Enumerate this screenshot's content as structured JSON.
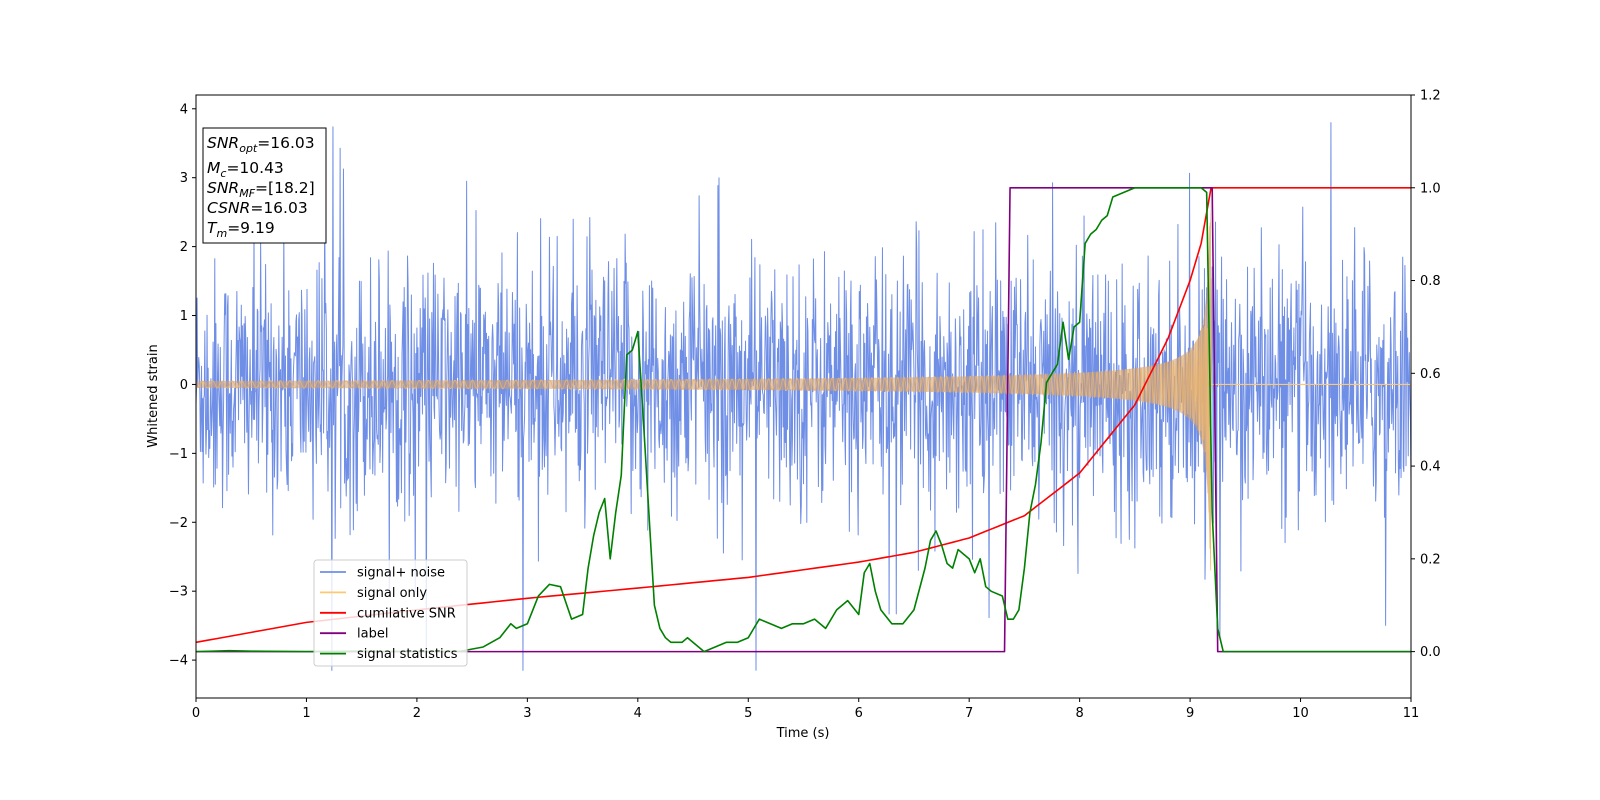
{
  "chart_data": {
    "type": "line",
    "xlabel": "Time (s)",
    "ylabel": "Whitened strain",
    "xlim": [
      0,
      11
    ],
    "ylim": [
      -4.55,
      4.2
    ],
    "y2lim": [
      -0.1,
      1.2
    ],
    "x_ticks": [
      "0",
      "1",
      "2",
      "3",
      "4",
      "5",
      "6",
      "7",
      "8",
      "9",
      "10",
      "11"
    ],
    "y_ticks": [
      "4",
      "3",
      "2",
      "1",
      "0",
      "−1",
      "−2",
      "−3",
      "−4"
    ],
    "y2_ticks": [
      "1.2",
      "1.0",
      "0.8",
      "0.6",
      "0.4",
      "0.2",
      "0.0"
    ],
    "grid": false,
    "legend_placement": "lower-left",
    "legend": [
      {
        "label": "signal+ noise",
        "color": "#6f8ee6"
      },
      {
        "label": "signal only",
        "color": "#ffc870"
      },
      {
        "label": "cumilative SNR",
        "color": "#ff0000"
      },
      {
        "label": "label",
        "color": "#800080"
      },
      {
        "label": "signal statistics",
        "color": "#008000"
      }
    ],
    "info_box": {
      "snr_opt": {
        "main": "SNR",
        "sub": "opt",
        "value": "=16.03"
      },
      "mc": {
        "main": "M",
        "sub": "c",
        "value": "=10.43"
      },
      "snr_mf": {
        "main": "SNR",
        "sub": "MF",
        "value": "=[18.2]"
      },
      "csnr": {
        "main": "CSNR",
        "value": "=16.03"
      },
      "tm": {
        "main": "T",
        "sub": "m",
        "value": "=9.19"
      }
    },
    "series": [
      {
        "name": "signal+ noise",
        "axis": "left",
        "color": "#6f8ee6",
        "description_stats": {
          "noise_std": 0.9,
          "spike_max": 3.8,
          "spike_min": -4.15,
          "x_range": [
            0,
            11
          ]
        }
      },
      {
        "name": "signal only",
        "axis": "left",
        "color": "#ffc870",
        "chirp": {
          "t_merge": 9.19,
          "amp_start": 0.05,
          "amp_peak": 2.7
        }
      },
      {
        "name": "cumilative SNR",
        "axis": "right",
        "color": "#ff0000",
        "x": [
          0,
          1,
          2,
          3,
          4,
          5,
          6,
          6.5,
          7,
          7.5,
          8,
          8.5,
          8.8,
          9.0,
          9.1,
          9.19,
          9.2,
          11
        ],
        "y": [
          0.02,
          0.063,
          0.09,
          0.115,
          0.137,
          0.16,
          0.193,
          0.214,
          0.245,
          0.293,
          0.385,
          0.532,
          0.675,
          0.8,
          0.88,
          1.0,
          1.0,
          1.0
        ]
      },
      {
        "name": "label",
        "axis": "right",
        "color": "#800080",
        "x": [
          0,
          7.32,
          7.37,
          9.2,
          9.25,
          11
        ],
        "y": [
          0,
          0,
          1,
          1,
          0,
          0
        ]
      },
      {
        "name": "signal statistics",
        "axis": "right",
        "color": "#008000",
        "x": [
          0,
          0.3,
          0.5,
          1,
          1.5,
          2,
          2.4,
          2.6,
          2.75,
          2.85,
          2.9,
          3.0,
          3.1,
          3.2,
          3.3,
          3.4,
          3.5,
          3.55,
          3.6,
          3.65,
          3.7,
          3.75,
          3.8,
          3.85,
          3.9,
          3.95,
          4.0,
          4.05,
          4.1,
          4.15,
          4.2,
          4.25,
          4.3,
          4.35,
          4.4,
          4.45,
          4.5,
          4.55,
          4.6,
          4.7,
          4.8,
          4.9,
          5.0,
          5.1,
          5.2,
          5.3,
          5.4,
          5.5,
          5.6,
          5.7,
          5.8,
          5.9,
          6.0,
          6.05,
          6.1,
          6.15,
          6.2,
          6.3,
          6.4,
          6.5,
          6.6,
          6.65,
          6.7,
          6.75,
          6.8,
          6.85,
          6.9,
          6.95,
          7.0,
          7.05,
          7.1,
          7.15,
          7.2,
          7.3,
          7.35,
          7.4,
          7.45,
          7.5,
          7.55,
          7.6,
          7.65,
          7.7,
          7.75,
          7.8,
          7.85,
          7.9,
          7.95,
          8.0,
          8.05,
          8.1,
          8.15,
          8.2,
          8.25,
          8.3,
          8.4,
          8.5,
          8.6,
          8.7,
          8.8,
          8.9,
          9.0,
          9.1,
          9.15,
          9.2,
          9.25,
          9.3,
          9.4,
          11
        ],
        "y": [
          0.0,
          0.002,
          0.001,
          0.0,
          0.001,
          0.0,
          0.001,
          0.01,
          0.03,
          0.06,
          0.05,
          0.06,
          0.12,
          0.145,
          0.14,
          0.07,
          0.08,
          0.18,
          0.25,
          0.3,
          0.33,
          0.2,
          0.3,
          0.38,
          0.64,
          0.65,
          0.69,
          0.5,
          0.3,
          0.1,
          0.05,
          0.03,
          0.02,
          0.02,
          0.02,
          0.03,
          0.02,
          0.01,
          0.0,
          0.01,
          0.02,
          0.02,
          0.03,
          0.07,
          0.06,
          0.05,
          0.06,
          0.06,
          0.07,
          0.05,
          0.09,
          0.11,
          0.08,
          0.17,
          0.19,
          0.13,
          0.09,
          0.06,
          0.06,
          0.09,
          0.18,
          0.24,
          0.26,
          0.23,
          0.19,
          0.18,
          0.22,
          0.21,
          0.2,
          0.17,
          0.2,
          0.14,
          0.13,
          0.12,
          0.07,
          0.07,
          0.09,
          0.18,
          0.3,
          0.36,
          0.45,
          0.58,
          0.6,
          0.62,
          0.71,
          0.63,
          0.7,
          0.71,
          0.88,
          0.9,
          0.91,
          0.93,
          0.94,
          0.98,
          0.99,
          1.0,
          1.0,
          1.0,
          1.0,
          1.0,
          1.0,
          1.0,
          0.99,
          0.3,
          0.05,
          0.0,
          0.0,
          0.0
        ]
      }
    ]
  }
}
